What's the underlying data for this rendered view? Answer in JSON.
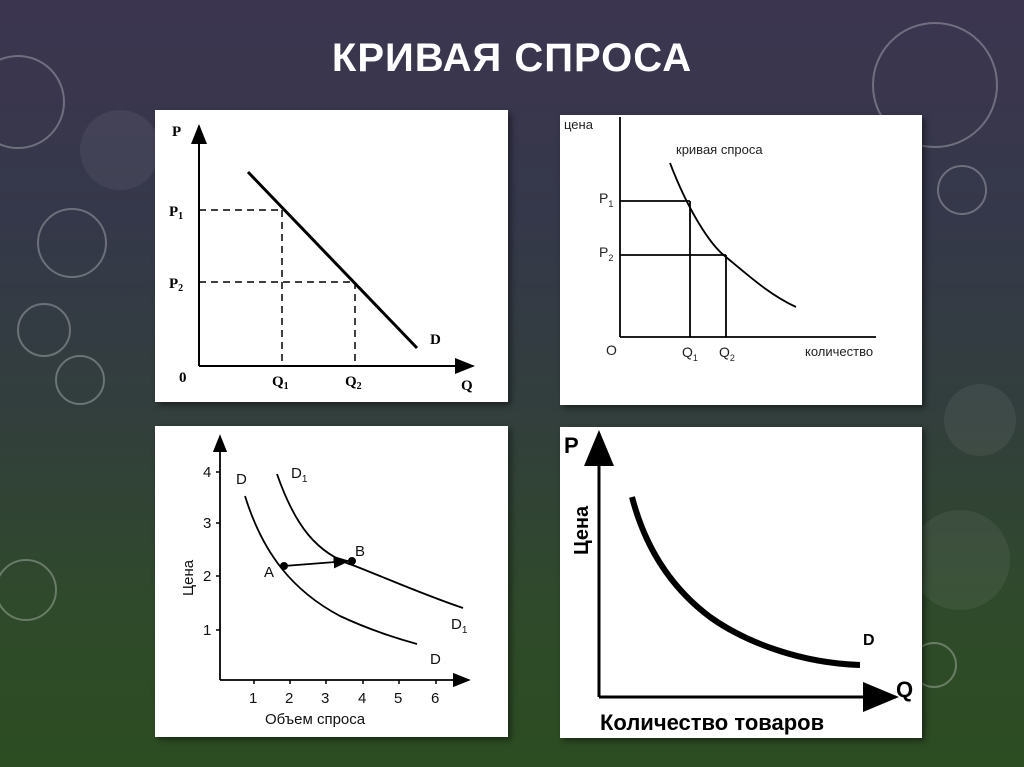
{
  "title": "КРИВАЯ СПРОСА",
  "panels": {
    "top_left": {
      "y_axis": "P",
      "x_axis": "Q",
      "origin": "0",
      "p1": "P",
      "p1_sub": "1",
      "p2": "P",
      "p2_sub": "2",
      "q1": "Q",
      "q1_sub": "1",
      "q2": "Q",
      "q2_sub": "2",
      "curve": "D"
    },
    "top_right": {
      "y_axis": "цена",
      "x_axis": "количество",
      "origin": "O",
      "curve_label": "кривая спроса",
      "p1": "P",
      "p1_sub": "1",
      "p2": "P",
      "p2_sub": "2",
      "q1": "Q",
      "q1_sub": "1",
      "q2": "Q",
      "q2_sub": "2"
    },
    "bottom_left": {
      "y_axis": "Цена",
      "x_axis": "Объем спроса",
      "y_ticks": [
        "1",
        "2",
        "3",
        "4"
      ],
      "x_ticks": [
        "1",
        "2",
        "3",
        "4",
        "5",
        "6"
      ],
      "d_top": "D",
      "d1_top": "D",
      "d1_top_sub": "1",
      "d_bottom": "D",
      "d1_bottom": "D",
      "d1_bottom_sub": "1",
      "point_a": "A",
      "point_b": "B"
    },
    "bottom_right": {
      "y_axis_letter": "P",
      "y_axis": "Цена",
      "x_axis_letter": "Q",
      "x_axis": "Количество товаров",
      "curve": "D"
    }
  }
}
